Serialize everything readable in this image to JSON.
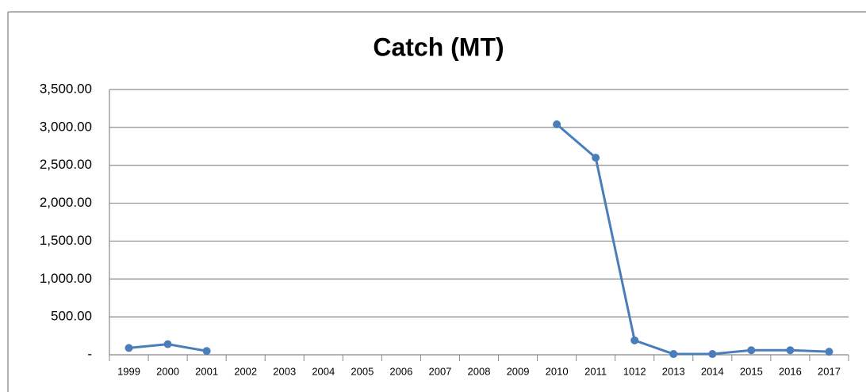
{
  "chart_data": {
    "type": "line",
    "title": "Catch (MT)",
    "categories": [
      "1999",
      "2000",
      "2001",
      "2002",
      "2003",
      "2004",
      "2005",
      "2006",
      "2007",
      "2008",
      "2009",
      "2010",
      "2011",
      "1012",
      "2013",
      "2014",
      "2015",
      "2016",
      "2017"
    ],
    "values": [
      90,
      140,
      50,
      null,
      null,
      null,
      null,
      null,
      null,
      null,
      null,
      3040,
      2600,
      190,
      10,
      10,
      60,
      60,
      40
    ],
    "color": "#4a7ebb",
    "ylim": [
      0,
      3500
    ],
    "yticks": [
      {
        "value": 0,
        "label": "-"
      },
      {
        "value": 500,
        "label": "500.00"
      },
      {
        "value": 1000,
        "label": "1,000.00"
      },
      {
        "value": 1500,
        "label": "1,500.00"
      },
      {
        "value": 2000,
        "label": "2,000.00"
      },
      {
        "value": 2500,
        "label": "2,500.00"
      },
      {
        "value": 3000,
        "label": "3,000.00"
      },
      {
        "value": 3500,
        "label": "3,500.00"
      }
    ],
    "grid": true
  }
}
